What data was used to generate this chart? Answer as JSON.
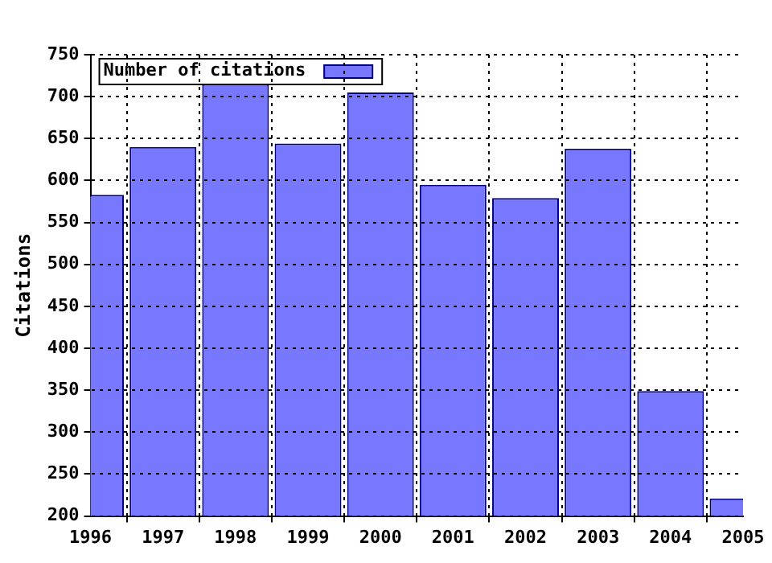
{
  "chart_data": {
    "type": "bar",
    "x": [
      1996,
      1997,
      1998,
      1999,
      2000,
      2001,
      2002,
      2003,
      2004,
      2005
    ],
    "series": [
      {
        "name": "Number of citations",
        "color": "#7878ff",
        "values": [
          583,
          640,
          715,
          644,
          705,
          595,
          579,
          638,
          349,
          221
        ]
      }
    ],
    "ylabel": "Citations",
    "xlim": [
      1996,
      2005
    ],
    "xticks": [
      1996,
      1997,
      1998,
      1999,
      2000,
      2001,
      2002,
      2003,
      2004,
      2005
    ],
    "ylim": [
      200,
      750
    ],
    "yticks": [
      200,
      250,
      300,
      350,
      400,
      450,
      500,
      550,
      600,
      650,
      700,
      750
    ],
    "grid": true,
    "legend": "top left"
  }
}
